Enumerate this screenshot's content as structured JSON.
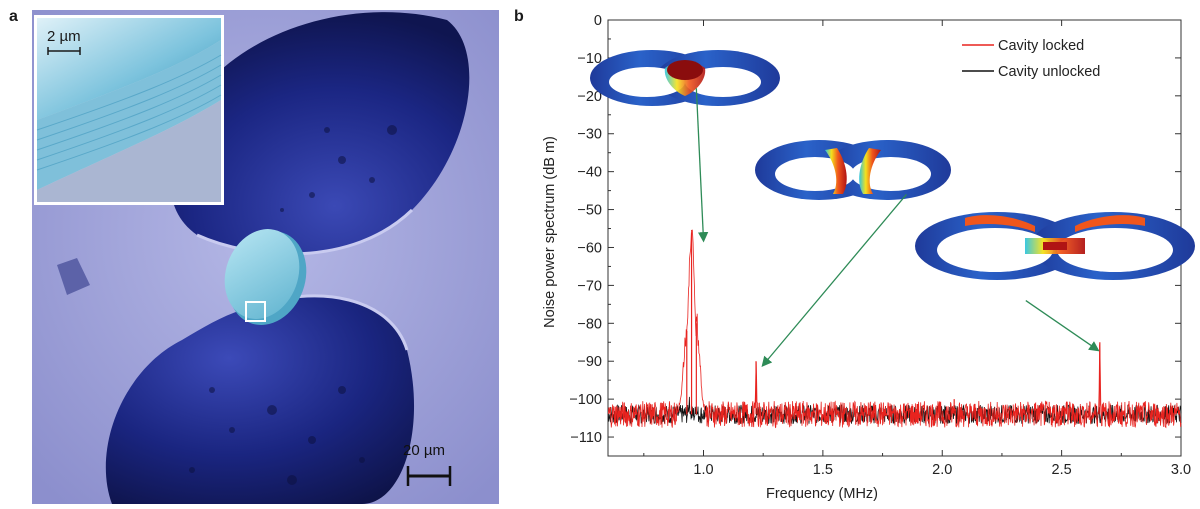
{
  "panel_a": {
    "label": "a",
    "inset_scale": "2 µm",
    "main_scale": "20 µm"
  },
  "panel_b": {
    "label": "b"
  },
  "chart_data": {
    "type": "line",
    "xlabel": "Frequency (MHz)",
    "ylabel": "Noise power spectrum (dB m)",
    "xlim": [
      0.6,
      3.0
    ],
    "ylim": [
      -115,
      0
    ],
    "xticks": [
      1.0,
      1.5,
      2.0,
      2.5,
      3.0
    ],
    "xtick_labels": [
      "1.0",
      "1.5",
      "2.0",
      "2.5",
      "3.0"
    ],
    "yticks": [
      0,
      -10,
      -20,
      -30,
      -40,
      -50,
      -60,
      -70,
      -80,
      -90,
      -100,
      -110
    ],
    "ytick_labels": [
      "0",
      "−10",
      "−20",
      "−30",
      "−40",
      "−50",
      "−60",
      "−70",
      "−80",
      "−90",
      "−100",
      "−110"
    ],
    "legend_position": "top-right",
    "series": [
      {
        "name": "Cavity locked",
        "color": "#e8231f",
        "baseline": -104,
        "peaks": [
          {
            "x": 0.95,
            "y": -56
          },
          {
            "x": 0.93,
            "y": -82
          },
          {
            "x": 0.97,
            "y": -80
          },
          {
            "x": 1.22,
            "y": -90
          },
          {
            "x": 2.05,
            "y": -100
          },
          {
            "x": 2.66,
            "y": -85
          },
          {
            "x": 2.52,
            "y": -101
          }
        ]
      },
      {
        "name": "Cavity unlocked",
        "color": "#111111",
        "baseline": -104,
        "peaks": [
          {
            "x": 0.94,
            "y": -101
          },
          {
            "x": 0.97,
            "y": -102
          }
        ]
      }
    ],
    "annotations": [
      {
        "from": [
          0.97,
          -18
        ],
        "to": [
          1.0,
          -58
        ]
      },
      {
        "from": [
          1.85,
          -46
        ],
        "to": [
          1.25,
          -91
        ]
      },
      {
        "from": [
          2.35,
          -74
        ],
        "to": [
          2.65,
          -87
        ]
      }
    ]
  },
  "colors": {
    "arrow": "#2e8b57",
    "sem_background": "#9b9ed6",
    "sem_pit": "#1d2a8c",
    "disk": "#8fd0e6"
  },
  "icons": {
    "mode_profile": "mode-profile-icon",
    "sem_micrograph": "sem-micrograph-icon"
  }
}
